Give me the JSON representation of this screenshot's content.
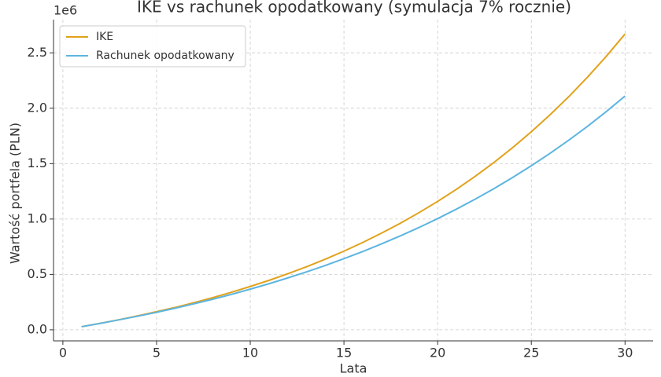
{
  "chart_data": {
    "type": "line",
    "title": "IKE vs rachunek opodatkowany (symulacja 7% rocznie)",
    "xlabel": "Lata",
    "ylabel": "Wartość portfela (PLN)",
    "y_offset_label": "1e6",
    "x": [
      1,
      2,
      3,
      4,
      5,
      6,
      7,
      8,
      9,
      10,
      11,
      12,
      13,
      14,
      15,
      16,
      17,
      18,
      19,
      20,
      21,
      22,
      23,
      24,
      25,
      26,
      27,
      28,
      29,
      30
    ],
    "series": [
      {
        "name": "IKE",
        "color": "#E1A21B",
        "values": [
          28000,
          59000,
          91000,
          126000,
          163000,
          202000,
          245000,
          290000,
          339000,
          391000,
          446000,
          506000,
          569000,
          637000,
          710000,
          788000,
          872000,
          961000,
          1057000,
          1159000,
          1268000,
          1385000,
          1510000,
          1644000,
          1788000,
          1941000,
          2105000,
          2281000,
          2469000,
          2670000
        ]
      },
      {
        "name": "Rachunek opodatkowany",
        "color": "#5DB5E0",
        "values": [
          28000,
          58000,
          90000,
          123000,
          158000,
          195000,
          235000,
          276000,
          320000,
          367000,
          416000,
          468000,
          523000,
          580000,
          642000,
          706000,
          775000,
          847000,
          923000,
          1004000,
          1089000,
          1179000,
          1274000,
          1375000,
          1481000,
          1593000,
          1712000,
          1837000,
          1970000,
          2110000
        ]
      }
    ],
    "xlim": [
      -0.5,
      31.5
    ],
    "xticks": [
      0,
      5,
      10,
      15,
      20,
      25,
      30
    ],
    "ylim": [
      -100000,
      2800000
    ],
    "yticks": [
      {
        "value": 0,
        "label": "0.0"
      },
      {
        "value": 500000,
        "label": "0.5"
      },
      {
        "value": 1000000,
        "label": "1.0"
      },
      {
        "value": 1500000,
        "label": "1.5"
      },
      {
        "value": 2000000,
        "label": "2.0"
      },
      {
        "value": 2500000,
        "label": "2.5"
      }
    ],
    "grid": true,
    "legend": "upper left"
  }
}
